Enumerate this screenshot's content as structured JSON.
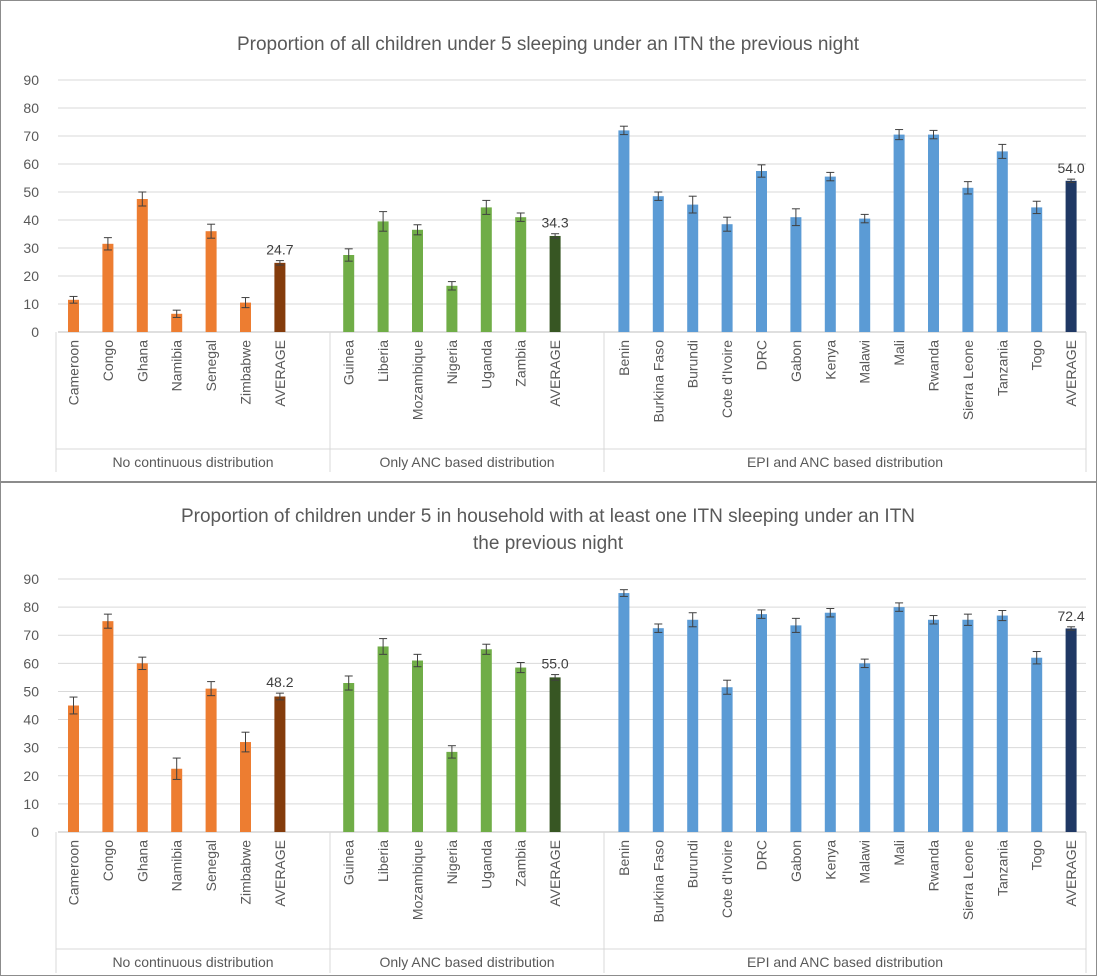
{
  "colors": {
    "no_continuous": "#ED7D31",
    "no_continuous_avg": "#843C0C",
    "anc_only": "#70AD47",
    "anc_only_avg": "#375623",
    "epi_anc": "#5B9BD5",
    "epi_anc_avg": "#1F3864",
    "axis_text": "#595959",
    "gridline": "#d9d9d9"
  },
  "chart_data": [
    {
      "type": "bar",
      "title": "Proportion of all children under 5 sleeping under an ITN the previous night",
      "ylim": [
        0,
        90
      ],
      "yticks": [
        "0",
        "10",
        "20",
        "30",
        "40",
        "50",
        "60",
        "70",
        "80",
        "90"
      ],
      "grid": true,
      "legend": "none",
      "error_bars": true,
      "groups": [
        {
          "name": "No continuous distribution",
          "categories": [
            "Cameroon",
            "Congo",
            "Ghana",
            "Namibia",
            "Senegal",
            "Zimbabwe",
            "AVERAGE"
          ],
          "values": [
            11.5,
            31.5,
            47.5,
            6.5,
            36,
            10.5,
            24.7
          ],
          "errors": [
            1.2,
            2.2,
            2.5,
            1.3,
            2.5,
            1.8,
            0.8
          ],
          "average_label": "24.7"
        },
        {
          "name": "Only ANC based distribution",
          "categories": [
            "Guinea",
            "Liberia",
            "Mozambique",
            "Nigeria",
            "Uganda",
            "Zambia",
            "AVERAGE"
          ],
          "values": [
            27.5,
            39.5,
            36.5,
            16.5,
            44.5,
            41,
            34.3
          ],
          "errors": [
            2.2,
            3.5,
            1.8,
            1.5,
            2.5,
            1.5,
            0.8
          ],
          "average_label": "34.3"
        },
        {
          "name": "EPI and ANC based distribution",
          "categories": [
            "Benin",
            "Burkina Faso",
            "Burundi",
            "Cote d'Ivoire",
            "DRC",
            "Gabon",
            "Kenya",
            "Malawi",
            "Mali",
            "Rwanda",
            "Sierra Leone",
            "Tanzania",
            "Togo",
            "AVERAGE"
          ],
          "values": [
            72,
            48.5,
            45.5,
            38.5,
            57.5,
            41,
            55.5,
            40.5,
            70.5,
            70.5,
            51.5,
            64.5,
            44.5,
            54.0
          ],
          "errors": [
            1.5,
            1.5,
            3,
            2.5,
            2.2,
            3,
            1.5,
            1.5,
            1.8,
            1.5,
            2.2,
            2.5,
            2.2,
            0.6
          ],
          "average_label": "54.0"
        }
      ]
    },
    {
      "type": "bar",
      "title": "Proportion of children under 5 in household with at least one ITN sleeping under an ITN the previous night",
      "title_lines": [
        "Proportion of children under 5 in household with at least one ITN sleeping under an ITN",
        "the previous night"
      ],
      "ylim": [
        0,
        90
      ],
      "yticks": [
        "0",
        "10",
        "20",
        "30",
        "40",
        "50",
        "60",
        "70",
        "80",
        "90"
      ],
      "grid": true,
      "legend": "none",
      "error_bars": true,
      "groups": [
        {
          "name": "No continuous distribution",
          "categories": [
            "Cameroon",
            "Congo",
            "Ghana",
            "Namibia",
            "Senegal",
            "Zimbabwe",
            "AVERAGE"
          ],
          "values": [
            45,
            75,
            60,
            22.5,
            51,
            32,
            48.2
          ],
          "errors": [
            3,
            2.5,
            2.2,
            3.8,
            2.5,
            3.5,
            1.2
          ],
          "average_label": "48.2"
        },
        {
          "name": "Only ANC based distribution",
          "categories": [
            "Guinea",
            "Liberia",
            "Mozambique",
            "Nigeria",
            "Uganda",
            "Zambia",
            "AVERAGE"
          ],
          "values": [
            53,
            66,
            61,
            28.5,
            65,
            58.5,
            55.0
          ],
          "errors": [
            2.5,
            2.8,
            2.2,
            2.2,
            1.8,
            1.8,
            1.0
          ],
          "average_label": "55.0"
        },
        {
          "name": "EPI and ANC based distribution",
          "categories": [
            "Benin",
            "Burkina Faso",
            "Burundi",
            "Cote d'Ivoire",
            "DRC",
            "Gabon",
            "Kenya",
            "Malawi",
            "Mali",
            "Rwanda",
            "Sierra Leone",
            "Tanzania",
            "Togo",
            "AVERAGE"
          ],
          "values": [
            85,
            72.5,
            75.5,
            51.5,
            77.5,
            73.5,
            78,
            60,
            80,
            75.5,
            75.5,
            77,
            62,
            72.4
          ],
          "errors": [
            1.2,
            1.5,
            2.5,
            2.5,
            1.5,
            2.5,
            1.5,
            1.5,
            1.5,
            1.5,
            2,
            1.8,
            2.2,
            0.6
          ],
          "average_label": "72.4"
        }
      ]
    }
  ]
}
